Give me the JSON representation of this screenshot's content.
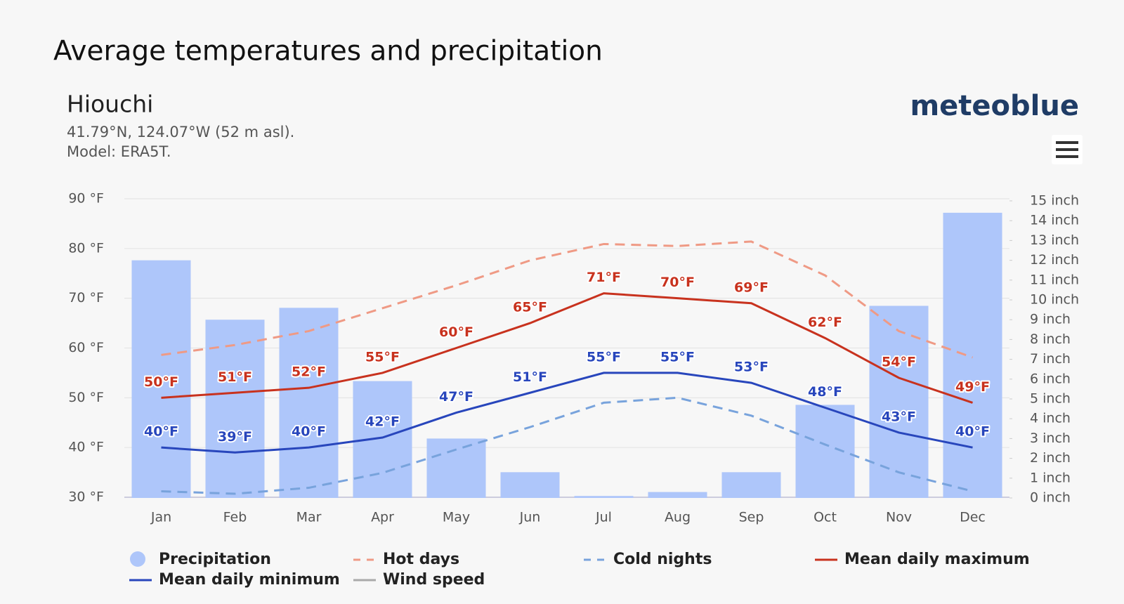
{
  "header": {
    "title": "Average temperatures and precipitation",
    "location": "Hiouchi",
    "coordinates": "41.79°N, 124.07°W (52 m asl).",
    "model": "Model: ERA5T.",
    "logo": "meteoblue"
  },
  "chart_data": {
    "type": "combo",
    "categories": [
      "Jan",
      "Feb",
      "Mar",
      "Apr",
      "May",
      "Jun",
      "Jul",
      "Aug",
      "Sep",
      "Oct",
      "Nov",
      "Dec"
    ],
    "ylim": [
      30,
      90
    ],
    "yticks": [
      {
        "value": 30,
        "label": "30 °F"
      },
      {
        "value": 40,
        "label": "40 °F"
      },
      {
        "value": 50,
        "label": "50 °F"
      },
      {
        "value": 60,
        "label": "60 °F"
      },
      {
        "value": 70,
        "label": "70 °F"
      },
      {
        "value": 80,
        "label": "80 °F"
      },
      {
        "value": 90,
        "label": "90 °F"
      }
    ],
    "y2lim": [
      0,
      15
    ],
    "y2ticks": [
      {
        "value": 0,
        "label": "0 inch"
      },
      {
        "value": 1,
        "label": "1 inch"
      },
      {
        "value": 2,
        "label": "2 inch"
      },
      {
        "value": 3,
        "label": "3 inch"
      },
      {
        "value": 4,
        "label": "4 inch"
      },
      {
        "value": 5,
        "label": "5 inch"
      },
      {
        "value": 6,
        "label": "6 inch"
      },
      {
        "value": 7,
        "label": "7 inch"
      },
      {
        "value": 8,
        "label": "8 inch"
      },
      {
        "value": 9,
        "label": "9 inch"
      },
      {
        "value": 10,
        "label": "10 inch"
      },
      {
        "value": 11,
        "label": "11 inch"
      },
      {
        "value": 12,
        "label": "12 inch"
      },
      {
        "value": 13,
        "label": "13 inch"
      },
      {
        "value": 14,
        "label": "14 inch"
      },
      {
        "value": 15,
        "label": "15 inch"
      }
    ],
    "grid": true,
    "series": [
      {
        "name": "Precipitation",
        "style": "bar",
        "axis": "y2",
        "color": "#aec6fa",
        "values": [
          12.0,
          9.0,
          9.6,
          5.9,
          3.0,
          1.3,
          0.1,
          0.3,
          1.3,
          4.7,
          9.7,
          14.4
        ]
      },
      {
        "name": "Hot days",
        "style": "dashed",
        "color": "#ef9a85",
        "values": [
          58.6,
          60.6,
          63.4,
          68.0,
          72.6,
          77.6,
          80.9,
          80.5,
          81.4,
          74.6,
          63.4,
          58.1
        ]
      },
      {
        "name": "Cold nights",
        "style": "dashed",
        "color": "#78a3dc",
        "values": [
          31.2,
          30.7,
          31.9,
          34.9,
          39.6,
          44.1,
          49.0,
          50.0,
          46.4,
          40.6,
          35.0,
          31.2
        ]
      },
      {
        "name": "Mean daily maximum",
        "style": "solid",
        "color": "#c8321e",
        "values": [
          50,
          51,
          52,
          55,
          60,
          65,
          71,
          70,
          69,
          62,
          54,
          49
        ],
        "value_labels": [
          "50°F",
          "51°F",
          "52°F",
          "55°F",
          "60°F",
          "65°F",
          "71°F",
          "70°F",
          "69°F",
          "62°F",
          "54°F",
          "49°F"
        ]
      },
      {
        "name": "Mean daily minimum",
        "style": "solid",
        "color": "#2846bc",
        "values": [
          40,
          39,
          40,
          42,
          47,
          51,
          55,
          55,
          53,
          48,
          43,
          40
        ],
        "value_labels": [
          "40°F",
          "39°F",
          "40°F",
          "42°F",
          "47°F",
          "51°F",
          "55°F",
          "55°F",
          "53°F",
          "48°F",
          "43°F",
          "40°F"
        ]
      },
      {
        "name": "Wind speed",
        "style": "hidden",
        "color": "#aaaaaa"
      }
    ]
  }
}
